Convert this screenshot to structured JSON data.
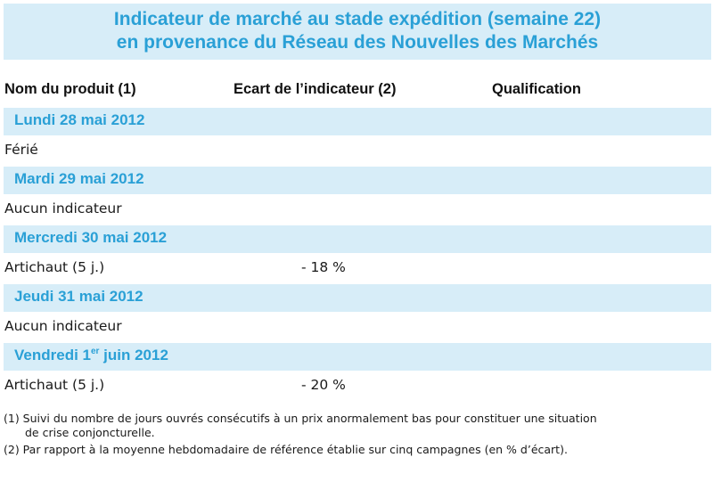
{
  "title": {
    "line1": "Indicateur de marché au stade expédition (semaine 22)",
    "line2": "en provenance du Réseau des Nouvelles des Marchés"
  },
  "columns": {
    "product": "Nom du produit (1)",
    "ecart": "Ecart de l’indicateur (2)",
    "qualification": "Qualification"
  },
  "days": [
    {
      "label": "Lundi 28 mai 2012",
      "product": "Férié",
      "ecart": ""
    },
    {
      "label": "Mardi 29 mai 2012",
      "product": "Aucun indicateur",
      "ecart": ""
    },
    {
      "label": "Mercredi 30 mai 2012",
      "product": "Artichaut (5 j.)",
      "ecart": "- 18 %"
    },
    {
      "label": "Jeudi 31 mai 2012",
      "product": "Aucun indicateur",
      "ecart": ""
    },
    {
      "label_prefix": "Vendredi 1",
      "label_sup": "er",
      "label_suffix": " juin 2012",
      "product": "Artichaut (5 j.)",
      "ecart": "- 20 %"
    }
  ],
  "notes": {
    "n1_line1": "(1) Suivi du nombre de jours ouvrés consécutifs à un prix anormalement bas pour constituer une situation",
    "n1_line2": "de crise conjoncturelle.",
    "n2": "(2) Par rapport à la moyenne hebdomadaire de référence établie sur cinq campagnes (en % d’écart)."
  }
}
